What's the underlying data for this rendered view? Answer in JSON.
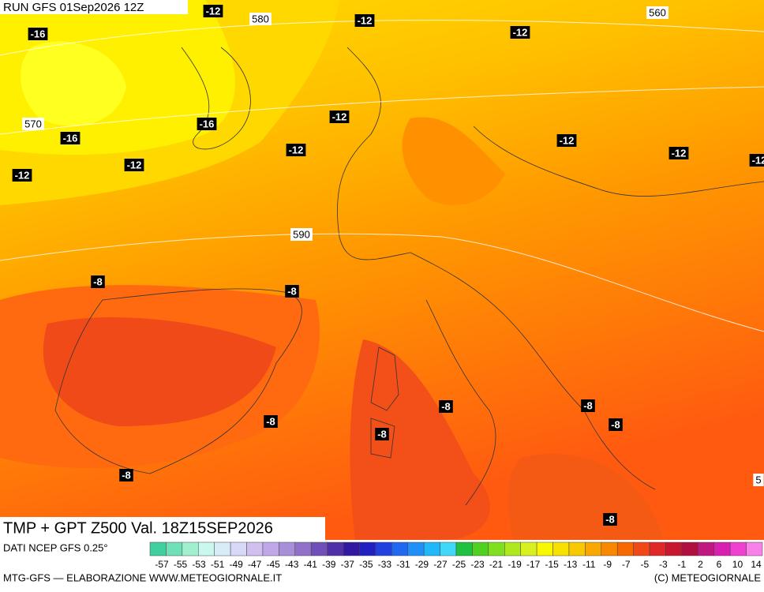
{
  "header": {
    "run": "RUN GFS 01Sep2026 12Z",
    "title": "TMP + GPT Z500 Val. 18Z15SEP2026"
  },
  "contour_labels": [
    "-12",
    "580",
    "-12",
    "560",
    "-16",
    "-12",
    "570",
    "-16",
    "-12",
    "-16",
    "-12",
    "-12",
    "-12",
    "-12",
    "-12",
    "-12",
    "590",
    "-8",
    "-8",
    "-8",
    "-8",
    "-8",
    "-8",
    "-8",
    "-8",
    "-8",
    "5"
  ],
  "footer": {
    "source": "DATI NCEP GFS 0.25°",
    "credits": "MTG-GFS — ELABORAZIONE WWW.METEOGIORNALE.IT",
    "copyright": "(C) METEOGIORNALE"
  },
  "color_scale": {
    "colors": [
      "#40d0a0",
      "#70e0b8",
      "#a0f0d0",
      "#c8f8f0",
      "#d8ecf8",
      "#d8d8f8",
      "#d0c0f0",
      "#c0a8e8",
      "#a890d8",
      "#9070c8",
      "#7050b8",
      "#5030a8",
      "#3018a0",
      "#2020c0",
      "#2040e0",
      "#2068f0",
      "#2090f8",
      "#20b8f8",
      "#40d8f8",
      "#20c040",
      "#50d020",
      "#80e020",
      "#b0e820",
      "#d8f020",
      "#f8f800",
      "#f8e000",
      "#f8c800",
      "#f8a800",
      "#f88800",
      "#f86800",
      "#f04818",
      "#e02828",
      "#c81830",
      "#b01040",
      "#c01880",
      "#d820b0",
      "#f040d0",
      "#f880e8"
    ],
    "labels": [
      "-57",
      "-55",
      "-53",
      "-51",
      "-49",
      "-47",
      "-45",
      "-43",
      "-41",
      "-39",
      "-37",
      "-35",
      "-33",
      "-31",
      "-29",
      "-27",
      "-25",
      "-23",
      "-21",
      "-19",
      "-17",
      "-15",
      "-13",
      "-11",
      "-9",
      "-7",
      "-5",
      "-3",
      "-1",
      "2",
      "6",
      "10",
      "14"
    ]
  }
}
